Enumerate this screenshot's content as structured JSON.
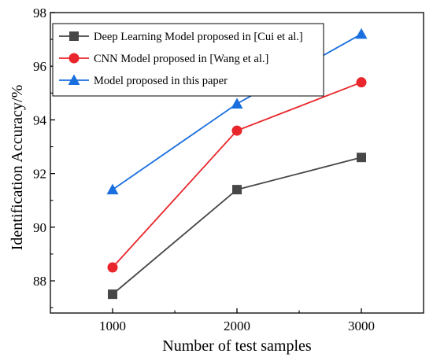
{
  "chart_data": {
    "type": "line",
    "xlabel": "Number of test samples",
    "ylabel": "Identification Accuracy/%",
    "x": [
      1000,
      2000,
      3000
    ],
    "xticks": [
      1000,
      2000,
      3000
    ],
    "xlim": [
      500,
      3500
    ],
    "yticks": [
      88,
      90,
      92,
      94,
      96,
      98
    ],
    "ylim": [
      86.8,
      98
    ],
    "grid": false,
    "legend_position": "top-left",
    "series": [
      {
        "name": "Deep Learning Model proposed in [Cui et al.]",
        "values": [
          87.5,
          91.4,
          92.6
        ],
        "color": "#474747",
        "marker": "square"
      },
      {
        "name": "CNN Model proposed in [Wang et al.]",
        "values": [
          88.5,
          93.6,
          95.4
        ],
        "color": "#e8262b",
        "marker": "circle"
      },
      {
        "name": "Model proposed in this paper",
        "values": [
          91.4,
          94.6,
          97.2
        ],
        "color": "#1a6fdf",
        "marker": "triangle"
      }
    ]
  }
}
